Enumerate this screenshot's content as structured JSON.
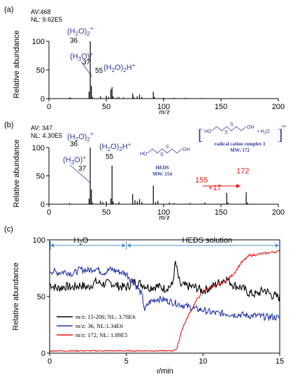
{
  "chart_data": [
    {
      "panel_label": "(a)",
      "type": "bar",
      "info_lines": [
        "AV:468",
        "NL: 9.62E5"
      ],
      "xlabel": "m/z",
      "ylabel": "Relative abundance",
      "xlim": [
        0,
        200
      ],
      "ylim": [
        0,
        100
      ],
      "xticks": [
        0,
        50,
        100,
        150,
        200
      ],
      "yticks": [
        0,
        50,
        100
      ],
      "peaks": [
        {
          "x": 18,
          "y": 2
        },
        {
          "x": 19,
          "y": 1.5
        },
        {
          "x": 35,
          "y": 12
        },
        {
          "x": 36,
          "y": 100
        },
        {
          "x": 37,
          "y": 22
        },
        {
          "x": 38,
          "y": 3
        },
        {
          "x": 45,
          "y": 4
        },
        {
          "x": 50,
          "y": 5
        },
        {
          "x": 52,
          "y": 3
        },
        {
          "x": 54,
          "y": 16
        },
        {
          "x": 55,
          "y": 20
        },
        {
          "x": 56,
          "y": 4
        },
        {
          "x": 59,
          "y": 2
        },
        {
          "x": 61,
          "y": 3
        },
        {
          "x": 65,
          "y": 2
        },
        {
          "x": 73,
          "y": 9
        },
        {
          "x": 74,
          "y": 3
        },
        {
          "x": 77,
          "y": 4
        },
        {
          "x": 79,
          "y": 7
        },
        {
          "x": 81,
          "y": 3
        },
        {
          "x": 91,
          "y": 12
        },
        {
          "x": 92,
          "y": 3
        },
        {
          "x": 100,
          "y": 1.5
        },
        {
          "x": 109,
          "y": 1.5
        },
        {
          "x": 119,
          "y": 1.5
        },
        {
          "x": 133,
          "y": 1
        }
      ],
      "annotations": [
        {
          "text": "(H2O)2+·",
          "x": 36
        },
        {
          "text": "36",
          "x": 36
        },
        {
          "text": "(H3O)+",
          "x": 37
        },
        {
          "text": "37",
          "x": 37
        },
        {
          "text": "55",
          "x": 55
        },
        {
          "text": "(H2O)2H+",
          "x": 55
        }
      ]
    },
    {
      "panel_label": "(b)",
      "type": "bar",
      "info_lines": [
        "AV: 347",
        "NL: 4.30E5"
      ],
      "xlabel": "m/z",
      "ylabel": "Relative abundance",
      "xlim": [
        0,
        200
      ],
      "ylim": [
        0,
        100
      ],
      "xticks": [
        0,
        50,
        100,
        150,
        200
      ],
      "yticks": [
        0,
        50,
        100
      ],
      "peaks": [
        {
          "x": 18,
          "y": 2
        },
        {
          "x": 35,
          "y": 10
        },
        {
          "x": 36,
          "y": 100
        },
        {
          "x": 37,
          "y": 26
        },
        {
          "x": 38,
          "y": 3
        },
        {
          "x": 45,
          "y": 6
        },
        {
          "x": 47,
          "y": 4
        },
        {
          "x": 50,
          "y": 5
        },
        {
          "x": 54,
          "y": 10
        },
        {
          "x": 55,
          "y": 68
        },
        {
          "x": 56,
          "y": 5
        },
        {
          "x": 61,
          "y": 4
        },
        {
          "x": 73,
          "y": 18
        },
        {
          "x": 75,
          "y": 7
        },
        {
          "x": 77,
          "y": 5
        },
        {
          "x": 79,
          "y": 9
        },
        {
          "x": 81,
          "y": 4
        },
        {
          "x": 91,
          "y": 33
        },
        {
          "x": 93,
          "y": 4
        },
        {
          "x": 95,
          "y": 6
        },
        {
          "x": 105,
          "y": 3
        },
        {
          "x": 109,
          "y": 2
        },
        {
          "x": 123,
          "y": 2
        },
        {
          "x": 136,
          "y": 3
        },
        {
          "x": 155,
          "y": 20
        },
        {
          "x": 156,
          "y": 3
        },
        {
          "x": 172,
          "y": 21
        },
        {
          "x": 173,
          "y": 3
        }
      ],
      "annotations": [
        {
          "text": "(H2O)2+·",
          "x": 36
        },
        {
          "text": "36",
          "x": 36
        },
        {
          "text": "(H3O)+",
          "x": 37
        },
        {
          "text": "37",
          "x": 37
        },
        {
          "text": "(H2O)2H+",
          "x": 55
        },
        {
          "text": "55",
          "x": 55
        },
        {
          "text": "155",
          "x": 155
        },
        {
          "text": "+17",
          "x": 163
        },
        {
          "text": "172",
          "x": 172
        }
      ],
      "structures": {
        "heds_label": "HEDS",
        "heds_mw": "MW: 154",
        "complex_label": "radical cation complex 1",
        "complex_mw": "MW:  172"
      }
    },
    {
      "panel_label": "(c)",
      "type": "line",
      "xlabel": "t/min",
      "ylabel": "Relative abundance",
      "xlim": [
        0,
        15
      ],
      "ylim": [
        0,
        100
      ],
      "xticks": [
        0,
        5,
        10,
        15
      ],
      "yticks": [
        0,
        50,
        100
      ],
      "regions": [
        {
          "label": "H2O",
          "from": 0,
          "to": 5
        },
        {
          "label": "HEDS solution",
          "from": 5,
          "to": 15
        }
      ],
      "series": [
        {
          "name": "m/z: 15-200, NL: 3.78E6",
          "color": "#000000",
          "x": [
            0,
            0.5,
            1,
            1.5,
            2,
            2.5,
            3,
            3.5,
            4,
            4.5,
            5,
            5.5,
            6,
            6.5,
            7,
            7.5,
            8,
            8.2,
            8.5,
            9,
            9.5,
            10,
            10.5,
            11,
            11.5,
            12,
            12.5,
            13,
            13.5,
            14,
            14.5,
            15
          ],
          "y": [
            61,
            57,
            59,
            58,
            60,
            58,
            63,
            61,
            62,
            59,
            58,
            63,
            61,
            58,
            59,
            57,
            60,
            80,
            60,
            59,
            58,
            55,
            58,
            62,
            66,
            60,
            58,
            53,
            52,
            56,
            51,
            49
          ]
        },
        {
          "name": "m/z: 36, NL:1.34E6",
          "color": "#2233aa",
          "x": [
            0,
            0.5,
            1,
            1.5,
            2,
            2.5,
            3,
            3.5,
            4,
            4.5,
            5,
            5.5,
            6,
            6.2,
            6.5,
            7,
            7.5,
            8,
            8.5,
            9,
            9.5,
            10,
            10.5,
            11,
            11.5,
            12,
            12.5,
            13,
            13.5,
            14,
            14.5,
            15
          ],
          "y": [
            73,
            71,
            72,
            70,
            74,
            73,
            75,
            71,
            74,
            72,
            70,
            62,
            52,
            38,
            45,
            48,
            47,
            45,
            43,
            41,
            39,
            38,
            36,
            35,
            35,
            34,
            34,
            33,
            33,
            32,
            32,
            31
          ]
        },
        {
          "name": "m/z: 172, NL: 1.89E5",
          "color": "#ee1111",
          "x": [
            0,
            1,
            2,
            3,
            4,
            5,
            6,
            7,
            7.5,
            8,
            8.3,
            8.6,
            9,
            9.5,
            10,
            10.5,
            11,
            11.5,
            12,
            12.5,
            13,
            13.5,
            14,
            14.5,
            15
          ],
          "y": [
            2,
            2,
            2,
            2,
            2,
            2,
            2,
            2,
            2,
            2,
            4,
            20,
            32,
            45,
            55,
            58,
            60,
            64,
            70,
            80,
            86,
            87,
            88,
            89,
            90
          ]
        }
      ]
    }
  ]
}
